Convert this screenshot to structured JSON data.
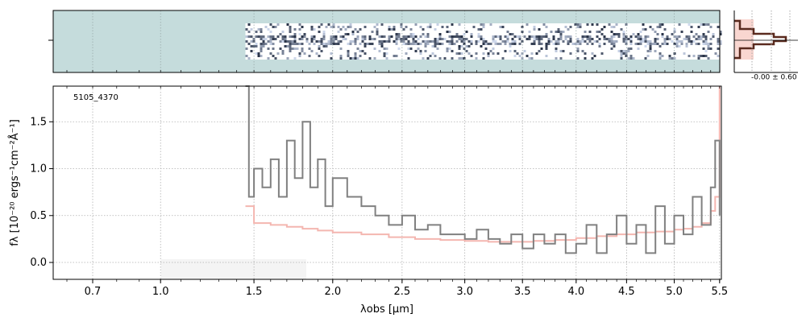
{
  "chart_data": [
    {
      "type": "heatmap",
      "panel": "2d-spectrum",
      "background_color": "#c5dcdc",
      "trace_color": "#1a2340",
      "x_start_um": 1.45,
      "x_end_um": 5.5
    },
    {
      "type": "line",
      "panel": "1d-spectrum",
      "annotation": "5105_4370",
      "xlabel": "λobs [μm]",
      "ylabel": "fλ [10⁻²⁰ ergs⁻¹cm⁻²Å⁻¹]",
      "ylim": [
        -0.18,
        1.88
      ],
      "xlim": [
        0.55,
        5.52
      ],
      "x_scale": "sqrt",
      "x_ticks": [
        0.7,
        1.0,
        1.5,
        2.0,
        2.5,
        3.0,
        3.5,
        4.0,
        4.5,
        5.0,
        5.5
      ],
      "x_tick_labels": [
        "0.7",
        "1.0",
        "1.5",
        "2.0",
        "2.5",
        "3.0",
        "3.5",
        "4.0",
        "4.5",
        "5.0",
        "5.5"
      ],
      "y_ticks": [
        0.0,
        0.5,
        1.0,
        1.5
      ],
      "y_tick_labels": [
        "0.0",
        "0.5",
        "1.0",
        "1.5"
      ],
      "grid": true,
      "series": [
        {
          "role": "flux",
          "color": "#808080",
          "x": [
            1.45,
            1.47,
            1.5,
            1.55,
            1.6,
            1.65,
            1.7,
            1.75,
            1.8,
            1.85,
            1.9,
            1.95,
            2.0,
            2.1,
            2.2,
            2.3,
            2.4,
            2.5,
            2.6,
            2.7,
            2.8,
            2.9,
            3.0,
            3.1,
            3.2,
            3.3,
            3.4,
            3.5,
            3.6,
            3.7,
            3.8,
            3.9,
            4.0,
            4.1,
            4.2,
            4.3,
            4.4,
            4.5,
            4.6,
            4.7,
            4.8,
            4.9,
            5.0,
            5.1,
            5.2,
            5.3,
            5.4,
            5.45,
            5.5
          ],
          "y": [
            1.9,
            0.7,
            1.0,
            0.8,
            1.1,
            0.7,
            1.3,
            0.9,
            1.5,
            0.8,
            1.1,
            0.6,
            0.9,
            0.7,
            0.6,
            0.5,
            0.4,
            0.5,
            0.35,
            0.4,
            0.3,
            0.3,
            0.25,
            0.35,
            0.25,
            0.2,
            0.3,
            0.15,
            0.3,
            0.2,
            0.3,
            0.1,
            0.2,
            0.4,
            0.1,
            0.3,
            0.5,
            0.2,
            0.4,
            0.1,
            0.6,
            0.2,
            0.5,
            0.3,
            0.7,
            0.4,
            0.8,
            1.3,
            0.5
          ]
        },
        {
          "role": "model",
          "color": "#f4b6b0",
          "x": [
            1.45,
            1.5,
            1.6,
            1.7,
            1.8,
            1.9,
            2.0,
            2.2,
            2.4,
            2.6,
            2.8,
            3.0,
            3.2,
            3.4,
            3.6,
            3.8,
            4.0,
            4.2,
            4.4,
            4.6,
            4.8,
            5.0,
            5.1,
            5.2,
            5.3,
            5.4,
            5.45,
            5.5
          ],
          "y": [
            0.6,
            0.42,
            0.4,
            0.38,
            0.36,
            0.34,
            0.32,
            0.3,
            0.27,
            0.25,
            0.24,
            0.23,
            0.22,
            0.22,
            0.23,
            0.24,
            0.26,
            0.28,
            0.3,
            0.32,
            0.33,
            0.35,
            0.36,
            0.38,
            0.42,
            0.55,
            0.7,
            1.9
          ]
        }
      ]
    },
    {
      "type": "bar",
      "panel": "cross-dispersion-profile",
      "annotation": "-0.00 ± 0.60",
      "shade_color": "#f9d6d0",
      "profile_color": "#5a2a1e"
    }
  ]
}
